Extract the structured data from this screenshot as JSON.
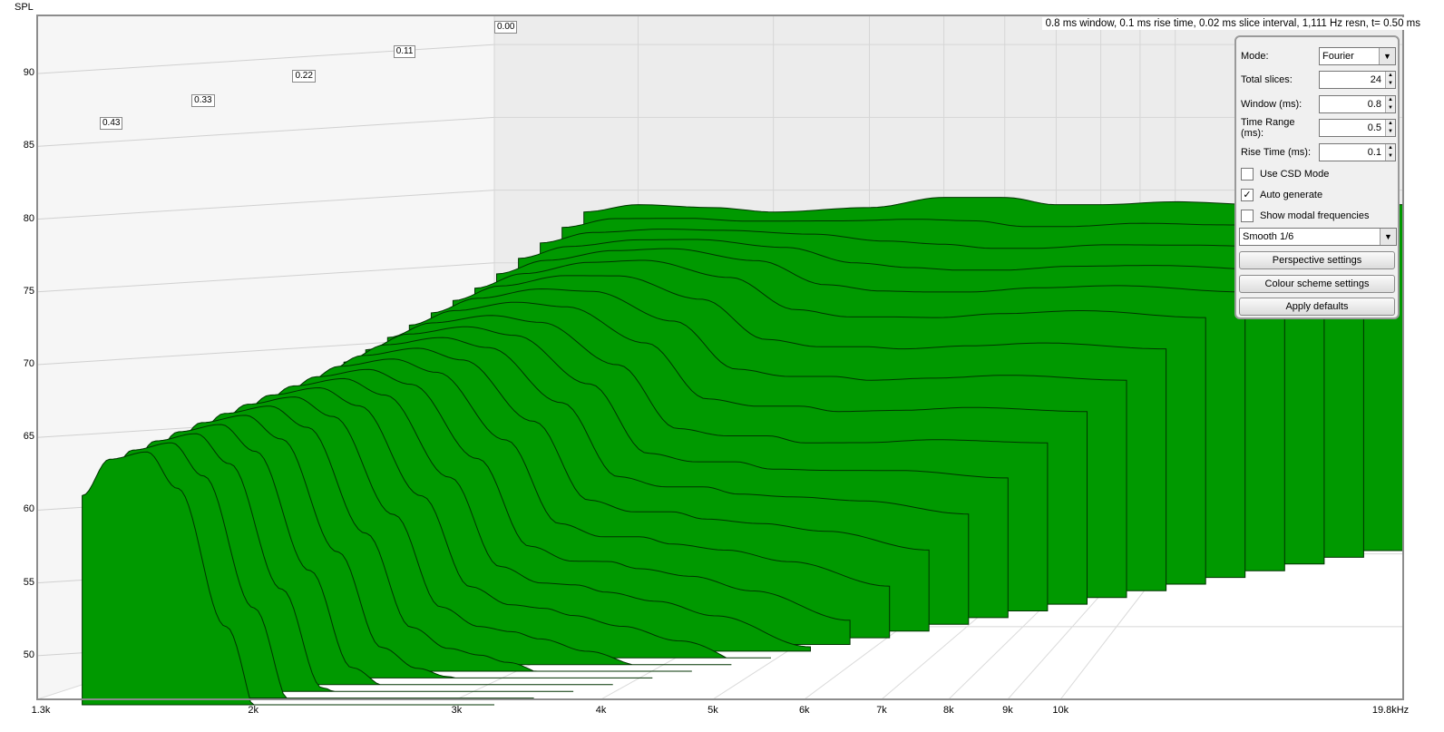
{
  "chart_data": {
    "type": "area",
    "subtype": "waterfall-3d",
    "ylabel": "SPL",
    "info": "0.8 ms window, 0.1 ms rise time, 0.02 ms slice interval, 1,111 Hz resn, t= 0.50 ms",
    "y_ticks": [
      "90",
      "85",
      "80",
      "75",
      "70",
      "65",
      "60",
      "55",
      "50"
    ],
    "y_tick_values": [
      90,
      85,
      80,
      75,
      70,
      65,
      60,
      55,
      50
    ],
    "ylim": [
      47,
      94
    ],
    "x_ticks": [
      "1.3k",
      "2k",
      "3k",
      "4k",
      "5k",
      "6k",
      "7k",
      "8k",
      "9k",
      "10k",
      "19.8kHz"
    ],
    "x_tick_values": [
      1300,
      2000,
      3000,
      4000,
      5000,
      6000,
      7000,
      8000,
      9000,
      10000,
      19800
    ],
    "xlim": [
      1300,
      19800
    ],
    "x_scale": "log",
    "time_axis_labels": [
      "0.00",
      "0.11",
      "0.22",
      "0.33",
      "0.43"
    ],
    "time_axis_values_ms": [
      0.0,
      0.11,
      0.22,
      0.33,
      0.43
    ],
    "fill_color": "#009900",
    "grid": true,
    "slices_anchor_ms": [
      0.0,
      0.1,
      0.2,
      0.3,
      0.4,
      0.5
    ],
    "anchor_x": [
      1700,
      2000,
      2500,
      3000,
      4000,
      5000,
      6000,
      7000,
      8000,
      10000,
      13000,
      19800
    ],
    "anchor_spl": [
      [
        78.5,
        79.0,
        78.8,
        78.5,
        78.8,
        79.5,
        79.5,
        79.0,
        79.0,
        79.2,
        79.0,
        79.0
      ],
      [
        74.0,
        75.0,
        75.8,
        76.0,
        75.0,
        73.0,
        72.5,
        72.5,
        72.5,
        72.8,
        73.0,
        72.5
      ],
      [
        70.5,
        71.5,
        72.0,
        71.5,
        68.5,
        64.0,
        63.5,
        63.5,
        63.0,
        63.0,
        63.2,
        63.0
      ],
      [
        67.0,
        68.5,
        69.0,
        68.0,
        63.0,
        57.0,
        56.0,
        56.0,
        55.5,
        55.0,
        54.0,
        52.0
      ],
      [
        64.0,
        66.0,
        66.5,
        65.0,
        57.5,
        51.0,
        49.5,
        49.0,
        48.5,
        47.5,
        46.5,
        44.0
      ],
      [
        61.0,
        63.5,
        64.0,
        61.5,
        52.0,
        45.0,
        44.0,
        43.0,
        42.0,
        41.0,
        40.0,
        38.0
      ]
    ]
  },
  "panel": {
    "mode_label": "Mode:",
    "mode_value": "Fourier",
    "total_slices_label": "Total slices:",
    "total_slices_value": "24",
    "window_label": "Window (ms):",
    "window_value": "0.8",
    "time_range_label": "Time Range (ms):",
    "time_range_value": "0.5",
    "rise_time_label": "Rise Time (ms):",
    "rise_time_value": "0.1",
    "use_csd_label": "Use CSD Mode",
    "use_csd_checked": false,
    "auto_generate_label": "Auto generate",
    "auto_generate_checked": true,
    "show_modal_label": "Show modal frequencies",
    "show_modal_checked": false,
    "smoothing_value": "Smooth 1/6",
    "perspective_button": "Perspective settings",
    "colour_scheme_button": "Colour scheme settings",
    "apply_defaults_button": "Apply defaults"
  }
}
